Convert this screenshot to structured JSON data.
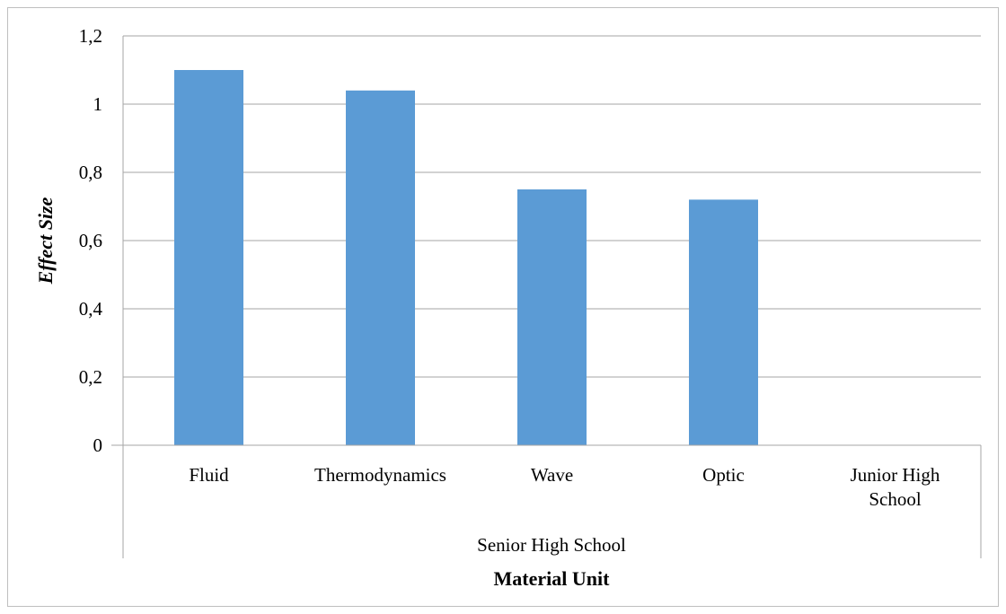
{
  "chart_data": {
    "type": "bar",
    "categories": [
      "Fluid",
      "Thermodynamics",
      "Wave",
      "Optic",
      "Junior High School"
    ],
    "category_lines": [
      [
        "Fluid"
      ],
      [
        "Thermodynamics"
      ],
      [
        "Wave"
      ],
      [
        "Optic"
      ],
      [
        "Junior High",
        "School"
      ]
    ],
    "group_label": "Senior High School",
    "values": [
      1.1,
      1.04,
      0.75,
      0.72,
      null
    ],
    "title": "",
    "xlabel": "Material Unit",
    "ylabel": "Effect Size",
    "ylim": [
      0,
      1.2
    ],
    "yticks": [
      "0",
      "0,2",
      "0,4",
      "0,6",
      "0,8",
      "1",
      "1,2"
    ],
    "grid": true,
    "bar_color": "#5b9bd5",
    "grid_color": "#a6a6a6"
  }
}
